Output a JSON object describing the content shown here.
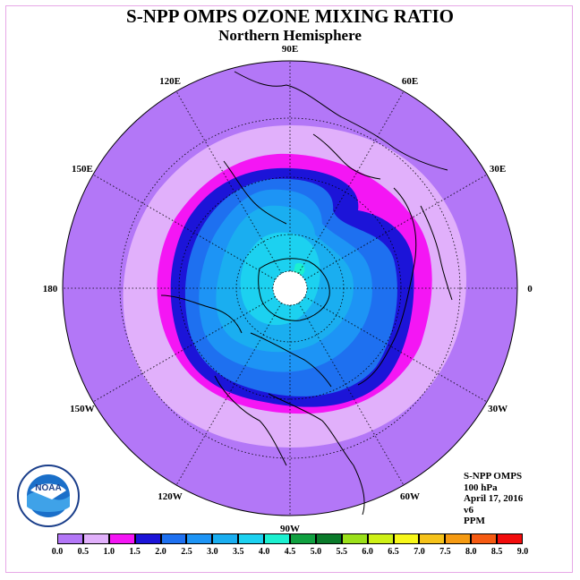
{
  "header": {
    "title": "S-NPP OMPS OZONE MIXING RATIO",
    "subtitle": "Northern Hemisphere"
  },
  "info": {
    "instrument": "S-NPP OMPS",
    "level": "100 hPa",
    "date": "April 17, 2016",
    "version": "v6",
    "units": "PPM"
  },
  "longitude_labels": [
    "90E",
    "60E",
    "30E",
    "0",
    "30W",
    "60W",
    "90W",
    "120W",
    "150W",
    "180",
    "150E",
    "120E"
  ],
  "colorbar": {
    "ticks": [
      "0.0",
      "0.5",
      "1.0",
      "1.5",
      "2.0",
      "2.5",
      "3.0",
      "3.5",
      "4.0",
      "4.5",
      "5.0",
      "5.5",
      "6.0",
      "6.5",
      "7.0",
      "7.5",
      "8.0",
      "8.5",
      "9.0"
    ],
    "colors": [
      "#b377f7",
      "#e1b0fb",
      "#f416f4",
      "#1c14d8",
      "#1e70f0",
      "#1d94f5",
      "#1aaef0",
      "#1cd1f0",
      "#1cf0d0",
      "#10a040",
      "#0a7a2a",
      "#9be01a",
      "#cef016",
      "#f7f71a",
      "#f5c21a",
      "#f59a12",
      "#f55a12",
      "#f20c0c",
      "#8a5a3c"
    ]
  },
  "map_colors": {
    "ocean_background": "#b377f7",
    "level_0_5_1_0": "#e1b0fb",
    "level_1_0_1_5": "#f416f4",
    "level_1_5_2_0": "#1c14d8",
    "level_2_0_2_5": "#1e70f0",
    "level_2_5_3_0": "#1d94f5",
    "level_3_0_3_5": "#1aaef0",
    "level_3_5_4_0": "#1cd1f0",
    "pole_no_data": "#ffffff"
  },
  "logo": {
    "text": "NOAA",
    "ring_text": "NATIONAL OCEANIC AND ATMOSPHERIC ADMINISTRATION · U.S. DEPARTMENT OF COMMERCE"
  }
}
